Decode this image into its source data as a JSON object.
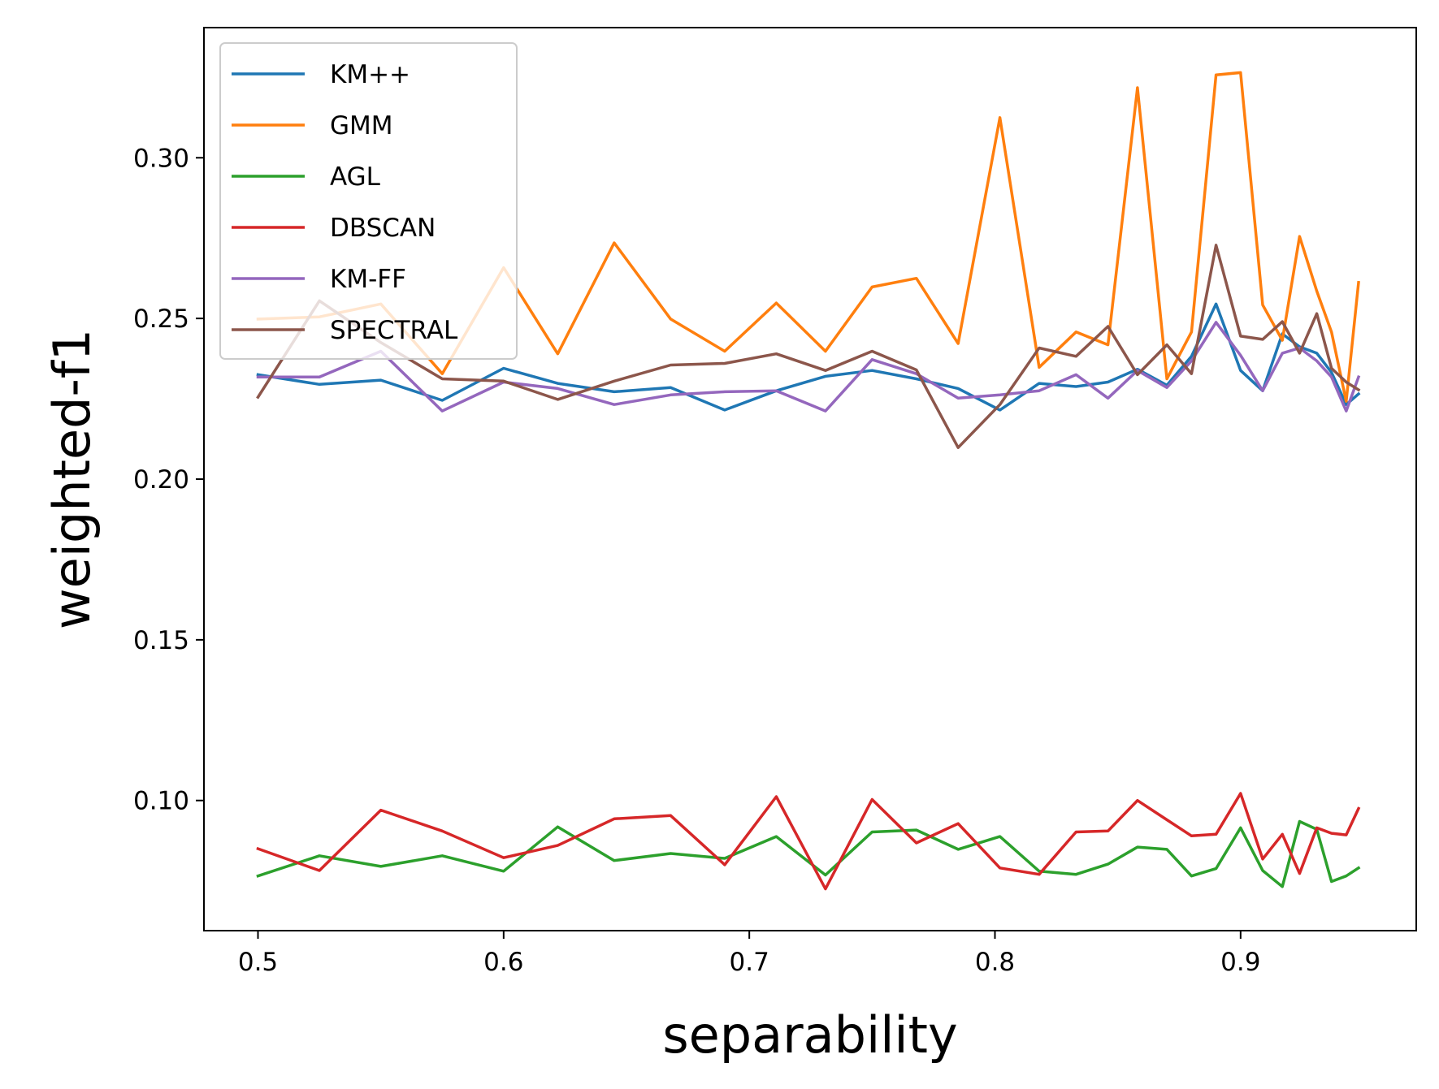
{
  "chart_data": {
    "type": "line",
    "title": "",
    "xlabel": "separability",
    "ylabel": "weighted-f1",
    "xlim": [
      0.478,
      0.9715
    ],
    "ylim": [
      0.0595,
      0.3405
    ],
    "xticks": [
      0.5,
      0.6,
      0.7,
      0.8,
      0.9
    ],
    "xtick_labels": [
      "0.5",
      "0.6",
      "0.7",
      "0.8",
      "0.9"
    ],
    "yticks": [
      0.1,
      0.15,
      0.2,
      0.25,
      0.3
    ],
    "ytick_labels": [
      "0.10",
      "0.15",
      "0.20",
      "0.25",
      "0.30"
    ],
    "grid": false,
    "legend_position": "upper-left",
    "x": [
      0.5,
      0.525,
      0.55,
      0.575,
      0.6,
      0.622,
      0.645,
      0.668,
      0.69,
      0.711,
      0.731,
      0.75,
      0.768,
      0.785,
      0.802,
      0.818,
      0.833,
      0.846,
      0.858,
      0.87,
      0.88,
      0.89,
      0.9,
      0.909,
      0.917,
      0.924,
      0.931,
      0.937,
      0.943,
      0.948
    ],
    "series": [
      {
        "name": "KM++",
        "color": "#1f77b4",
        "values": [
          0.2325,
          0.2295,
          0.2308,
          0.2245,
          0.2345,
          0.2298,
          0.2272,
          0.2285,
          0.2215,
          0.2275,
          0.232,
          0.2338,
          0.2312,
          0.2282,
          0.2215,
          0.2298,
          0.2288,
          0.2302,
          0.2342,
          0.2292,
          0.2382,
          0.2545,
          0.2338,
          0.2275,
          0.2452,
          0.2412,
          0.2392,
          0.2332,
          0.2232,
          0.2265
        ]
      },
      {
        "name": "GMM",
        "color": "#ff7f0e",
        "values": [
          0.2498,
          0.2505,
          0.2545,
          0.2328,
          0.2658,
          0.239,
          0.2735,
          0.2498,
          0.2398,
          0.2548,
          0.2398,
          0.2598,
          0.2625,
          0.2422,
          0.3125,
          0.2348,
          0.2458,
          0.2418,
          0.3218,
          0.2312,
          0.2458,
          0.3258,
          0.3265,
          0.2542,
          0.2432,
          0.2755,
          0.2585,
          0.2458,
          0.2242,
          0.2612
        ]
      },
      {
        "name": "AGL",
        "color": "#2ca02c",
        "values": [
          0.0765,
          0.0828,
          0.0795,
          0.0828,
          0.078,
          0.0918,
          0.0813,
          0.0835,
          0.082,
          0.0888,
          0.0768,
          0.0902,
          0.0908,
          0.0848,
          0.0888,
          0.078,
          0.077,
          0.0802,
          0.0855,
          0.0848,
          0.0765,
          0.0788,
          0.0915,
          0.0782,
          0.0732,
          0.0935,
          0.091,
          0.0748,
          0.0765,
          0.079
        ]
      },
      {
        "name": "DBSCAN",
        "color": "#d62728",
        "values": [
          0.085,
          0.0782,
          0.097,
          0.0905,
          0.0822,
          0.086,
          0.0943,
          0.0953,
          0.08,
          0.1012,
          0.0725,
          0.1003,
          0.0868,
          0.0928,
          0.079,
          0.077,
          0.0902,
          0.0905,
          0.1,
          0.094,
          0.089,
          0.0895,
          0.1022,
          0.0818,
          0.0895,
          0.0773,
          0.0915,
          0.0898,
          0.0893,
          0.0975
        ]
      },
      {
        "name": "KM-FF",
        "color": "#9467bd",
        "values": [
          0.2318,
          0.2318,
          0.2398,
          0.2212,
          0.2302,
          0.2282,
          0.2232,
          0.2262,
          0.2272,
          0.2275,
          0.2212,
          0.2372,
          0.2328,
          0.2252,
          0.2262,
          0.2275,
          0.2325,
          0.2252,
          0.2338,
          0.2285,
          0.2368,
          0.2488,
          0.2385,
          0.2275,
          0.2392,
          0.2408,
          0.2368,
          0.2318,
          0.2212,
          0.2318
        ]
      },
      {
        "name": "SPECTRAL",
        "color": "#8c564b",
        "values": [
          0.2255,
          0.2555,
          0.2425,
          0.2312,
          0.2305,
          0.2248,
          0.2305,
          0.2355,
          0.236,
          0.239,
          0.2338,
          0.2398,
          0.234,
          0.2098,
          0.2232,
          0.2408,
          0.2382,
          0.2475,
          0.2325,
          0.2418,
          0.2328,
          0.2728,
          0.2445,
          0.2435,
          0.249,
          0.2392,
          0.2515,
          0.2345,
          0.2302,
          0.2278
        ]
      }
    ]
  }
}
